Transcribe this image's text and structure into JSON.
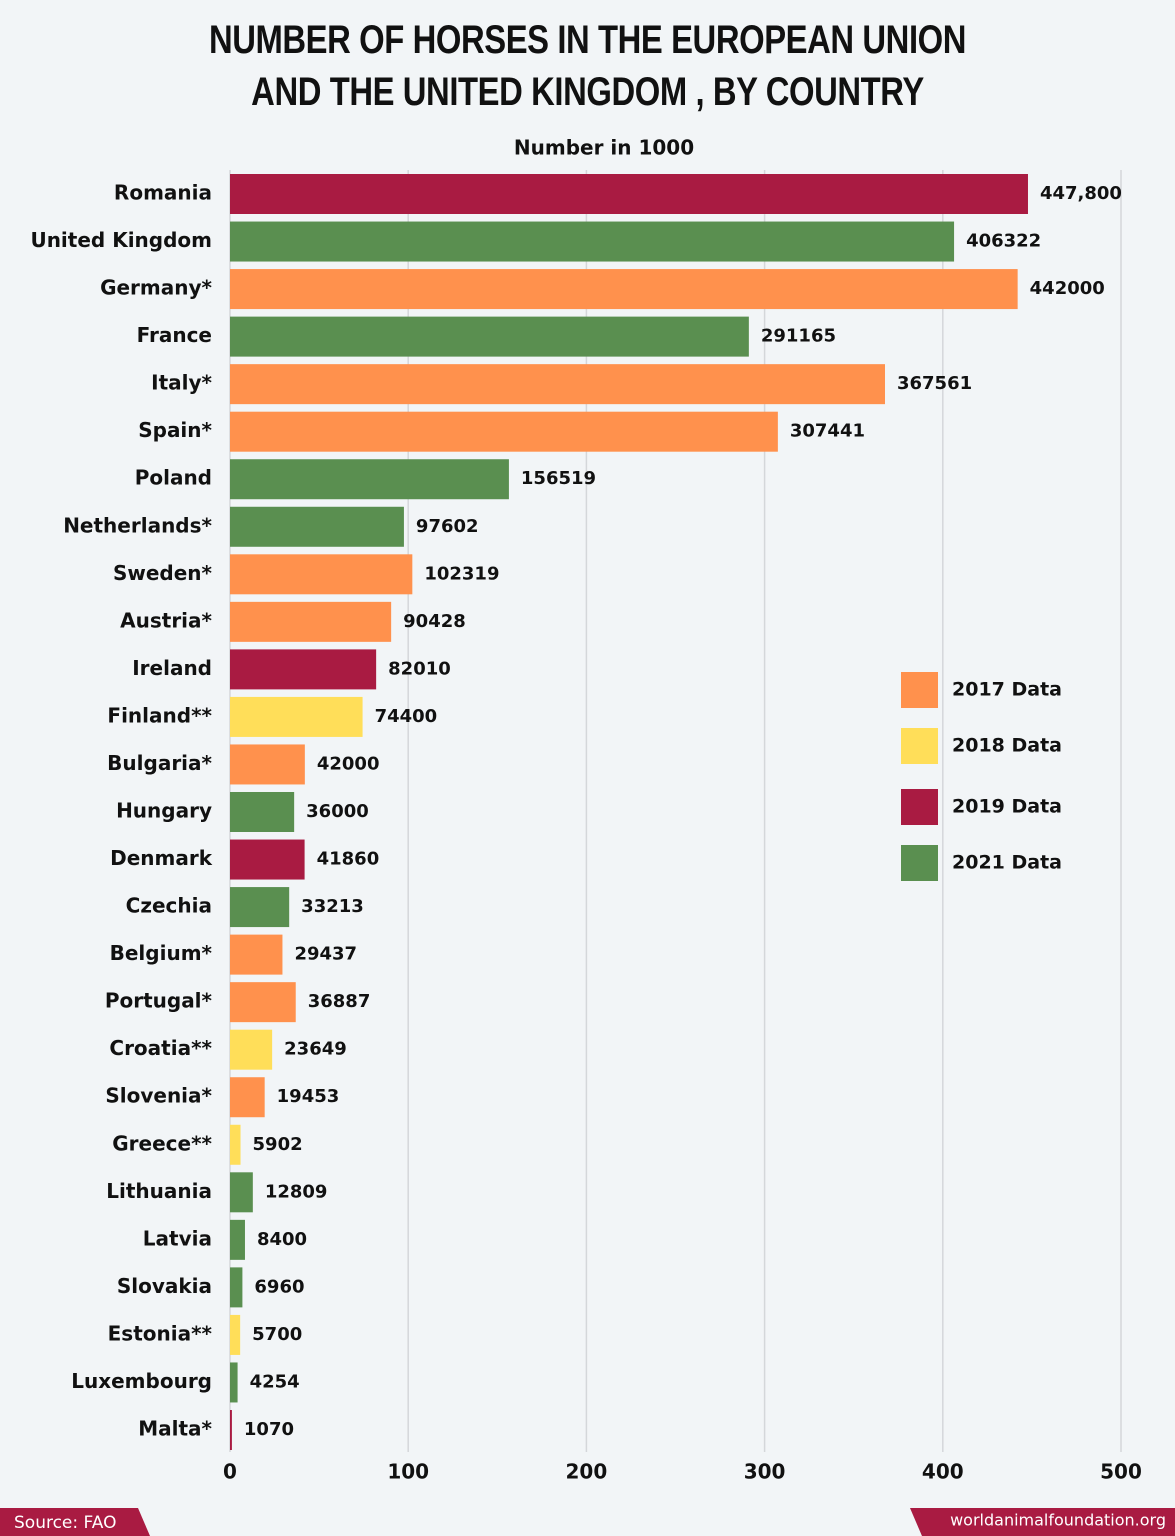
{
  "chart_data": {
    "type": "hbar",
    "title": "NUMBER OF HORSES IN THE EUROPEAN UNION AND THE UNITED KINGDOM , BY COUNTRY",
    "subtitle": "Number in 1000",
    "categories": [
      "Romania",
      "United Kingdom",
      "Germany*",
      "France",
      "Italy*",
      "Spain*",
      "Poland",
      "Netherlands*",
      "Sweden*",
      "Austria*",
      "Ireland",
      "Finland**",
      "Bulgaria*",
      "Hungary",
      "Denmark",
      "Czechia",
      "Belgium*",
      "Portugal*",
      "Croatia**",
      "Slovenia*",
      "Greece**",
      "Lithuania",
      "Latvia",
      "Slovakia",
      "Estonia**",
      "Luxembourg",
      "Malta*"
    ],
    "values": [
      447.8,
      406.322,
      442,
      291.165,
      367.561,
      307.441,
      156.519,
      97.602,
      102.319,
      90.428,
      82.01,
      74.4,
      42,
      36,
      41.86,
      33.213,
      29.437,
      36.887,
      23.649,
      19.453,
      5.902,
      12.809,
      8.4,
      6.96,
      5.7,
      4.254,
      1.07
    ],
    "value_labels": [
      "447,800",
      "406322",
      "442000",
      "291165",
      "367561",
      "307441",
      "156519",
      "97602",
      "102319",
      "90428",
      "82010",
      "74400",
      "42000",
      "36000",
      "41860",
      "33213",
      "29437",
      "36887",
      "23649",
      "19453",
      "5902",
      "12809",
      "8400",
      "6960",
      "5700",
      "4254",
      "1070"
    ],
    "colors": [
      "#a91b42",
      "#5a8f50",
      "#ff914d",
      "#5a8f50",
      "#ff914d",
      "#ff914d",
      "#5a8f50",
      "#5a8f50",
      "#ff914d",
      "#ff914d",
      "#a91b42",
      "#ffde59",
      "#ff914d",
      "#5a8f50",
      "#a91b42",
      "#5a8f50",
      "#ff914d",
      "#ff914d",
      "#ffde59",
      "#ff914d",
      "#ffde59",
      "#5a8f50",
      "#5a8f50",
      "#5a8f50",
      "#ffde59",
      "#5a8f50",
      "#a91b42"
    ],
    "legend": [
      {
        "name": "2017 Data",
        "color": "#ff914d"
      },
      {
        "name": "2018 Data",
        "color": "#ffde59"
      },
      {
        "name": "2019 Data",
        "color": "#a91b42"
      },
      {
        "name": "2021 Data",
        "color": "#5a8f50"
      }
    ],
    "xlim": [
      0,
      500
    ],
    "xticks": [
      0,
      100,
      200,
      300,
      400,
      500
    ],
    "grid": true,
    "source": "Source: FAO",
    "website": "worldanimalfoundation.org"
  }
}
